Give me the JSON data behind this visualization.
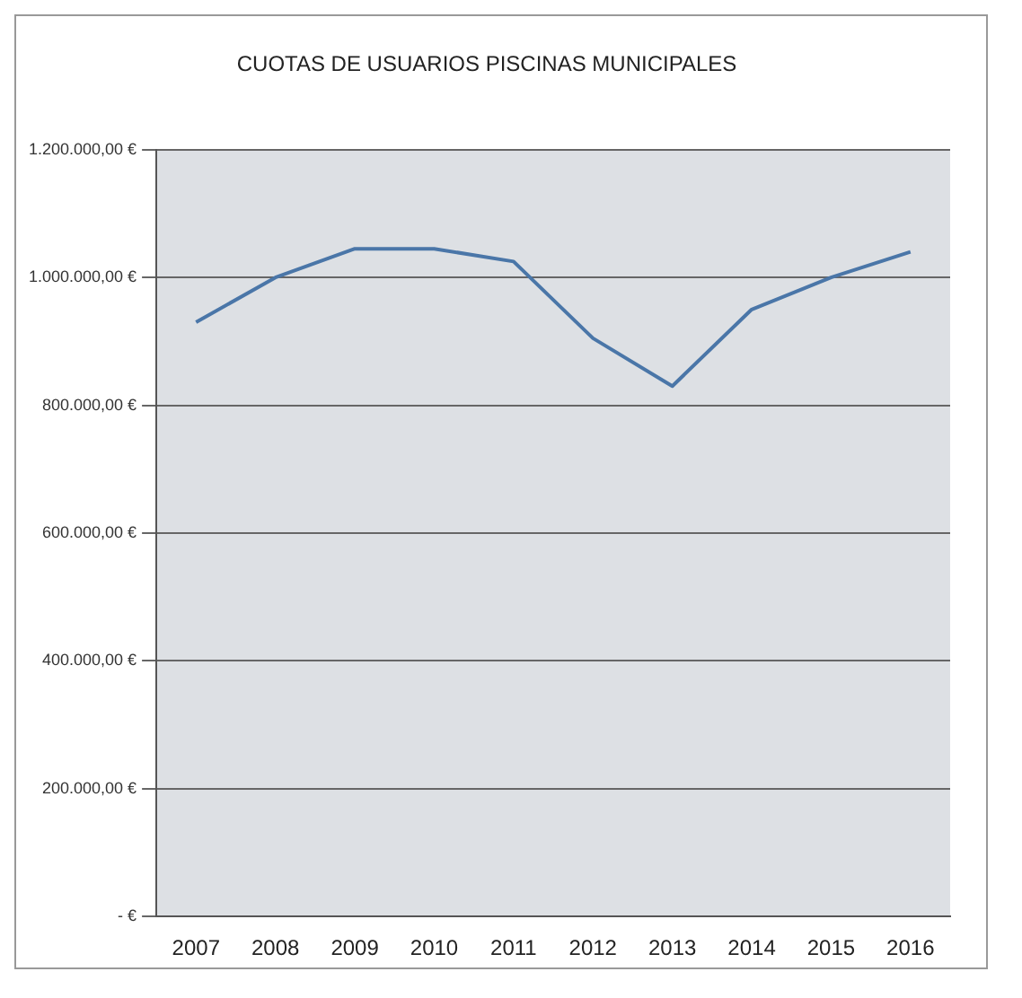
{
  "chart_data": {
    "type": "line",
    "title": "CUOTAS DE USUARIOS PISCINAS MUNICIPALES",
    "categories": [
      "2007",
      "2008",
      "2009",
      "2010",
      "2011",
      "2012",
      "2013",
      "2014",
      "2015",
      "2016"
    ],
    "series": [
      {
        "color": "#4a76a8",
        "values": [
          930000,
          1000000,
          1045000,
          1045000,
          1025000,
          905000,
          830000,
          950000,
          1000000,
          1040000
        ]
      }
    ],
    "ylim": [
      0,
      1200000
    ],
    "yticks": [
      {
        "value": 0,
        "label": "- €"
      },
      {
        "value": 200000,
        "label": "200.000,00 €"
      },
      {
        "value": 400000,
        "label": "400.000,00 €"
      },
      {
        "value": 600000,
        "label": "600.000,00 €"
      },
      {
        "value": 800000,
        "label": "800.000,00 €"
      },
      {
        "value": 1000000,
        "label": "1.000.000,00 €"
      },
      {
        "value": 1200000,
        "label": "1.200.000,00 €"
      }
    ],
    "grid": "y",
    "legend": false,
    "marker": "none",
    "line_style": "solid"
  }
}
